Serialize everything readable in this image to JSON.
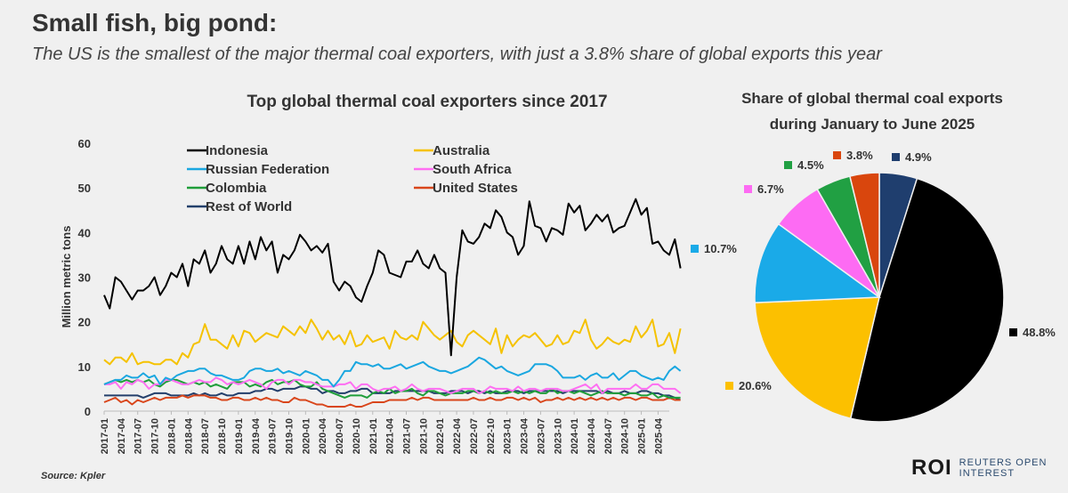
{
  "headline": "Small fish, big pond:",
  "subheadline": "The US is the smallest of the major thermal coal exporters, with just a 3.8% share of global exports this year",
  "source": "Source: Kpler",
  "logo": {
    "mark": "ROI",
    "line1": "REUTERS OPEN",
    "line2": "INTEREST"
  },
  "chart_data": [
    {
      "type": "line",
      "title": "Top global thermal coal exporters since 2017",
      "ylabel": "Million metric tons",
      "ylim": [
        0,
        60
      ],
      "yticks": [
        0,
        10,
        20,
        30,
        40,
        50,
        60
      ],
      "xticks": [
        "2017-01",
        "2017-04",
        "2017-07",
        "2017-10",
        "2018-01",
        "2018-04",
        "2018-07",
        "2018-10",
        "2019-01",
        "2019-04",
        "2019-07",
        "2019-10",
        "2020-01",
        "2020-04",
        "2020-07",
        "2020-10",
        "2021-01",
        "2021-04",
        "2021-07",
        "2021-10",
        "2022-01",
        "2022-04",
        "2022-07",
        "2022-10",
        "2023-01",
        "2023-04",
        "2023-07",
        "2023-10",
        "2024-01",
        "2024-04",
        "2024-07",
        "2024-10",
        "2025-01",
        "2025-04"
      ],
      "x_start": "2017-01",
      "x_end": "2025-06",
      "legend_placement": "top-left",
      "series": [
        {
          "name": "Indonesia",
          "color": "#000000",
          "values": [
            26,
            23,
            30,
            29,
            27,
            25,
            27,
            27,
            28,
            30,
            26,
            28,
            31,
            30,
            33,
            28,
            34,
            33,
            36,
            31,
            33,
            37,
            34,
            33,
            37,
            33,
            38,
            34,
            39,
            36,
            38,
            31,
            35,
            34,
            36,
            39.5,
            38,
            36,
            37,
            35.5,
            37.5,
            29,
            27,
            29,
            28,
            25.5,
            24.5,
            28,
            31,
            36,
            35,
            31,
            30.5,
            30,
            33.5,
            33.5,
            36,
            33,
            32,
            35,
            32,
            31,
            12.5,
            30,
            40.5,
            38,
            37.5,
            39,
            42,
            41,
            45,
            43.5,
            40,
            39,
            35,
            37,
            47,
            41.5,
            41,
            38,
            41,
            40.5,
            39.5,
            46.5,
            44.5,
            46,
            40.5,
            42,
            44,
            42.5,
            44,
            40,
            41,
            41.5,
            44.5,
            47.5,
            44,
            45.5,
            37.5,
            38,
            36,
            35,
            38.5,
            32
          ]
        },
        {
          "name": "Australia",
          "color": "#f5c200",
          "values": [
            11.5,
            10.5,
            12,
            12,
            11,
            13,
            10.5,
            11,
            11,
            10.5,
            10.5,
            11.5,
            11.5,
            10.5,
            13,
            12,
            15,
            15.5,
            19.5,
            16,
            16,
            15,
            14,
            17,
            14.5,
            18,
            17.5,
            15.5,
            16.5,
            17.5,
            17,
            16.5,
            19,
            18,
            17,
            19,
            17.5,
            20.5,
            18.5,
            16,
            18,
            16,
            17,
            15,
            18,
            14.5,
            15,
            17,
            15.5,
            16,
            16.5,
            14,
            18,
            16.5,
            16,
            17,
            16,
            20,
            18.5,
            17,
            16,
            17,
            18,
            15.5,
            14.5,
            17,
            18,
            17,
            16,
            15,
            18.5,
            13,
            17,
            14.5,
            16,
            17,
            16.5,
            17.5,
            16,
            14.5,
            15,
            17,
            15,
            15.5,
            18,
            17.5,
            20.5,
            16,
            14,
            15,
            16.5,
            15.5,
            15,
            16,
            15.5,
            19,
            16.5,
            18,
            20.5,
            14.5,
            15,
            17.5,
            13,
            18.5
          ]
        },
        {
          "name": "Russian Federation",
          "color": "#1aa7e0",
          "values": [
            6,
            6.5,
            7,
            7,
            8,
            7.5,
            7.5,
            8.5,
            7.5,
            8,
            6,
            7.5,
            7,
            8,
            8.5,
            9,
            9,
            9.5,
            9.5,
            8.5,
            8,
            8,
            7.5,
            7,
            7,
            7.5,
            9,
            9.5,
            9.5,
            9,
            9,
            9.5,
            8.5,
            9,
            8.5,
            8,
            9,
            8.5,
            8,
            7,
            7,
            5.5,
            7,
            9,
            9,
            11,
            10.5,
            10.5,
            10,
            10.5,
            9.5,
            9.5,
            10,
            10.5,
            9.5,
            10,
            10.5,
            11,
            10,
            9.5,
            9,
            9,
            8.5,
            9,
            9.5,
            10,
            11,
            12,
            11.5,
            10.5,
            9.5,
            10,
            9,
            8.5,
            8,
            8.5,
            9,
            10.5,
            10.5,
            10.5,
            10,
            9,
            7.5,
            7.5,
            7.5,
            8,
            7,
            8,
            8.5,
            7.5,
            7.5,
            8.5,
            7,
            8,
            9,
            9,
            8,
            7.5,
            7,
            7.5,
            7,
            9,
            10,
            9
          ]
        },
        {
          "name": "South Africa",
          "color": "#ff6ef2",
          "values": [
            6,
            6,
            6.5,
            5,
            6.5,
            6,
            7,
            6.5,
            5,
            6,
            6,
            7,
            7,
            6.5,
            6,
            6,
            6.5,
            7,
            6.5,
            6.5,
            7.5,
            7,
            6,
            6.5,
            6,
            6.5,
            7,
            6.5,
            6,
            5,
            6.5,
            7,
            7,
            6,
            7,
            7,
            6.5,
            6.5,
            6,
            5.5,
            5.5,
            5.5,
            6,
            6,
            6.5,
            5,
            6,
            6,
            5,
            4.5,
            5,
            5,
            5.5,
            4.5,
            5,
            6,
            5,
            4.5,
            5,
            5,
            5,
            4.5,
            4,
            4.5,
            5,
            5,
            5,
            4,
            4.5,
            5.5,
            5,
            5,
            5,
            4.5,
            5.5,
            4.5,
            5,
            5,
            4.5,
            5,
            5,
            5,
            4.5,
            4.5,
            5,
            5.5,
            6,
            5,
            6,
            4,
            5,
            5,
            5,
            5,
            5,
            6,
            5,
            5,
            6,
            6,
            5,
            5,
            5,
            4
          ]
        },
        {
          "name": "Colombia",
          "color": "#1f9e3a",
          "values": [
            6,
            6.5,
            7,
            6.5,
            7,
            6.5,
            7,
            6.5,
            7,
            6,
            5.5,
            6.5,
            7,
            7,
            6.5,
            6,
            6.5,
            6,
            6.5,
            5.5,
            6,
            5.5,
            5,
            6.5,
            6.5,
            6.5,
            5.5,
            6,
            5.5,
            6.5,
            7,
            6,
            6.5,
            6.5,
            7,
            6,
            5.5,
            5.5,
            6.5,
            5,
            4.5,
            4,
            3.5,
            3,
            3.5,
            3.5,
            3.5,
            3,
            4,
            4.5,
            4,
            5,
            4,
            4.5,
            4.5,
            5,
            4,
            3.5,
            4.5,
            4.5,
            4,
            3.5,
            4,
            4,
            4,
            4.5,
            4.5,
            4,
            4.5,
            4,
            4.5,
            4,
            4,
            4.5,
            4,
            4.5,
            4,
            4.5,
            4,
            4,
            5,
            4,
            4.5,
            4.5,
            4,
            4.5,
            4,
            3.5,
            4,
            4.5,
            4,
            4,
            4,
            3.5,
            4,
            4,
            3.5,
            3.5,
            4,
            3,
            3.5,
            3,
            3,
            3
          ]
        },
        {
          "name": "United States",
          "color": "#d9461b",
          "values": [
            2,
            2.5,
            3,
            2,
            2.5,
            1.5,
            2.5,
            2,
            2.5,
            3,
            2.5,
            3,
            3,
            3,
            3.5,
            3,
            3.5,
            3.5,
            3.5,
            3,
            3,
            2.5,
            2.5,
            3,
            3,
            2.5,
            2.5,
            3,
            2.5,
            3,
            2.5,
            2.5,
            2,
            2,
            3,
            2.5,
            2.5,
            2,
            1.5,
            1.5,
            1,
            1,
            1,
            1,
            1.5,
            1,
            1,
            1.5,
            2,
            2,
            2,
            2.5,
            2.5,
            2.5,
            2.5,
            3,
            2.5,
            3,
            3,
            2.5,
            2.5,
            2.5,
            2.5,
            2.5,
            2.5,
            2.5,
            3,
            2.5,
            2.5,
            3,
            2.5,
            2.5,
            3,
            3,
            2.5,
            3,
            2.5,
            3,
            2,
            2.5,
            2.5,
            3,
            2.5,
            3,
            2.5,
            3,
            2.5,
            3,
            2.5,
            3,
            2.5,
            3,
            2.5,
            3,
            3,
            2.5,
            3,
            3,
            2.5,
            2.5,
            2.5,
            3,
            2.5,
            2.5
          ]
        },
        {
          "name": "Rest of World",
          "color": "#233f6b",
          "values": [
            3.5,
            3.5,
            3.5,
            3.5,
            3.5,
            3.5,
            3.5,
            3,
            3.5,
            4,
            4,
            4,
            3.5,
            3.5,
            3.5,
            3.5,
            4,
            3.5,
            4,
            3.5,
            3.5,
            4,
            3.5,
            3.5,
            4,
            4,
            4,
            4.5,
            4.5,
            5,
            5,
            4.5,
            5,
            5,
            5,
            5.5,
            5.5,
            5,
            5,
            4,
            4.5,
            4.5,
            4,
            4,
            4.5,
            4.5,
            5,
            5,
            4,
            4,
            4,
            4,
            4.5,
            4.5,
            4.5,
            4.5,
            4.5,
            4.5,
            4.5,
            4,
            4,
            4,
            4.5,
            4.5,
            4.5,
            4,
            4.5,
            4.5,
            4,
            4.5,
            4,
            4,
            4.5,
            4.5,
            4.5,
            4,
            4.5,
            4.5,
            4.5,
            4.5,
            4.5,
            4.5,
            4,
            4.5,
            4.5,
            4.5,
            4.5,
            4.5,
            4.5,
            4,
            4.5,
            4,
            4,
            4.5,
            4,
            4,
            4.5,
            4.5,
            4,
            4,
            3.5,
            3.5,
            3,
            2.5
          ]
        }
      ]
    },
    {
      "type": "pie",
      "title": [
        "Share of global thermal coal exports",
        "during January to June 2025"
      ],
      "slices": [
        {
          "label": "4.9%",
          "value": 4.9,
          "color": "#1f3e6e"
        },
        {
          "label": "48.8%",
          "value": 48.8,
          "color": "#000000"
        },
        {
          "label": "20.6%",
          "value": 20.6,
          "color": "#fcc000"
        },
        {
          "label": "10.7%",
          "value": 10.7,
          "color": "#1aaae8"
        },
        {
          "label": "6.7%",
          "value": 6.7,
          "color": "#fd6bf3"
        },
        {
          "label": "4.5%",
          "value": 4.5,
          "color": "#21a043"
        },
        {
          "label": "3.8%",
          "value": 3.8,
          "color": "#d9460d"
        }
      ]
    }
  ]
}
